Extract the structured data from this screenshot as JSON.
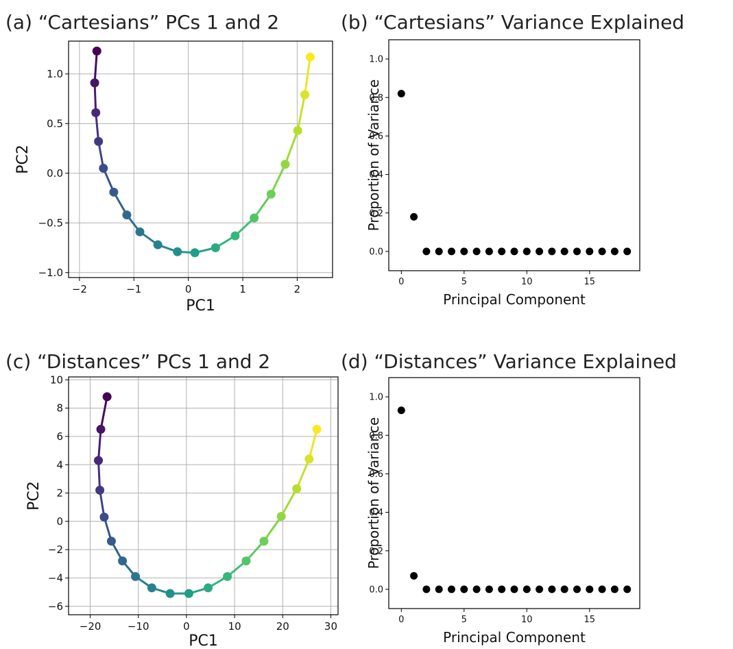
{
  "panels": {
    "a": {
      "title": "(a) “Cartesians” PCs 1 and 2"
    },
    "b": {
      "title": "(b) “Cartesians” Variance Explained"
    },
    "c": {
      "title": "(c) “Distances” PCs 1 and 2"
    },
    "d": {
      "title": "(d) “Distances” Variance Explained"
    }
  },
  "chart_data": [
    {
      "id": "a",
      "type": "line",
      "title": "(a) “Cartesians” PCs 1 and 2",
      "xlabel": "PC1",
      "ylabel": "PC2",
      "xlim": [
        -2.2,
        2.65
      ],
      "ylim": [
        -1.05,
        1.33
      ],
      "xticks": [
        -2,
        -1,
        0,
        1,
        2
      ],
      "yticks": [
        -1.0,
        -0.5,
        0.0,
        0.5,
        1.0
      ],
      "grid": true,
      "colormap": "viridis",
      "x": [
        -1.68,
        -1.72,
        -1.7,
        -1.65,
        -1.56,
        -1.37,
        -1.13,
        -0.89,
        -0.56,
        -0.2,
        0.12,
        0.5,
        0.86,
        1.21,
        1.52,
        1.78,
        2.01,
        2.14,
        2.24
      ],
      "y": [
        1.23,
        0.91,
        0.61,
        0.32,
        0.05,
        -0.19,
        -0.42,
        -0.59,
        -0.72,
        -0.79,
        -0.8,
        -0.75,
        -0.63,
        -0.45,
        -0.21,
        0.09,
        0.43,
        0.79,
        1.17
      ]
    },
    {
      "id": "b",
      "type": "scatter",
      "title": "(b) “Cartesians” Variance Explained",
      "xlabel": "Principal Component",
      "ylabel": "Proportion of Variance",
      "xlim": [
        -1,
        19
      ],
      "ylim": [
        -0.1,
        1.1
      ],
      "xticks": [
        0,
        5,
        10,
        15
      ],
      "yticks": [
        0.0,
        0.2,
        0.4,
        0.6,
        0.8,
        1.0
      ],
      "grid": false,
      "x": [
        0,
        1,
        2,
        3,
        4,
        5,
        6,
        7,
        8,
        9,
        10,
        11,
        12,
        13,
        14,
        15,
        16,
        17,
        18
      ],
      "y": [
        0.82,
        0.18,
        0,
        0,
        0,
        0,
        0,
        0,
        0,
        0,
        0,
        0,
        0,
        0,
        0,
        0,
        0,
        0,
        0
      ]
    },
    {
      "id": "c",
      "type": "line",
      "title": "(c) “Distances” PCs 1 and 2",
      "xlabel": "PC1",
      "ylabel": "PC2",
      "xlim": [
        -24.5,
        31.5
      ],
      "ylim": [
        -6.6,
        10.2
      ],
      "xticks": [
        -20,
        -10,
        0,
        10,
        20,
        30
      ],
      "yticks": [
        -6,
        -4,
        -2,
        0,
        2,
        4,
        6,
        8,
        10
      ],
      "grid": true,
      "colormap": "viridis",
      "x": [
        -16.5,
        -17.8,
        -18.3,
        -18.0,
        -17.1,
        -15.6,
        -13.3,
        -10.6,
        -7.2,
        -3.4,
        0.5,
        4.5,
        8.5,
        12.4,
        16.1,
        19.7,
        22.9,
        25.5,
        27.1
      ],
      "y": [
        8.8,
        6.5,
        4.3,
        2.2,
        0.3,
        -1.4,
        -2.8,
        -3.9,
        -4.7,
        -5.1,
        -5.1,
        -4.7,
        -3.9,
        -2.8,
        -1.4,
        0.35,
        2.3,
        4.4,
        6.5
      ]
    },
    {
      "id": "d",
      "type": "scatter",
      "title": "(d) “Distances” Variance Explained",
      "xlabel": "Principal Component",
      "ylabel": "Proportion of Variance",
      "xlim": [
        -1,
        19
      ],
      "ylim": [
        -0.1,
        1.1
      ],
      "xticks": [
        0,
        5,
        10,
        15
      ],
      "yticks": [
        0.0,
        0.2,
        0.4,
        0.6,
        0.8,
        1.0
      ],
      "grid": false,
      "x": [
        0,
        1,
        2,
        3,
        4,
        5,
        6,
        7,
        8,
        9,
        10,
        11,
        12,
        13,
        14,
        15,
        16,
        17,
        18
      ],
      "y": [
        0.93,
        0.07,
        0,
        0,
        0,
        0,
        0,
        0,
        0,
        0,
        0,
        0,
        0,
        0,
        0,
        0,
        0,
        0,
        0
      ]
    }
  ]
}
